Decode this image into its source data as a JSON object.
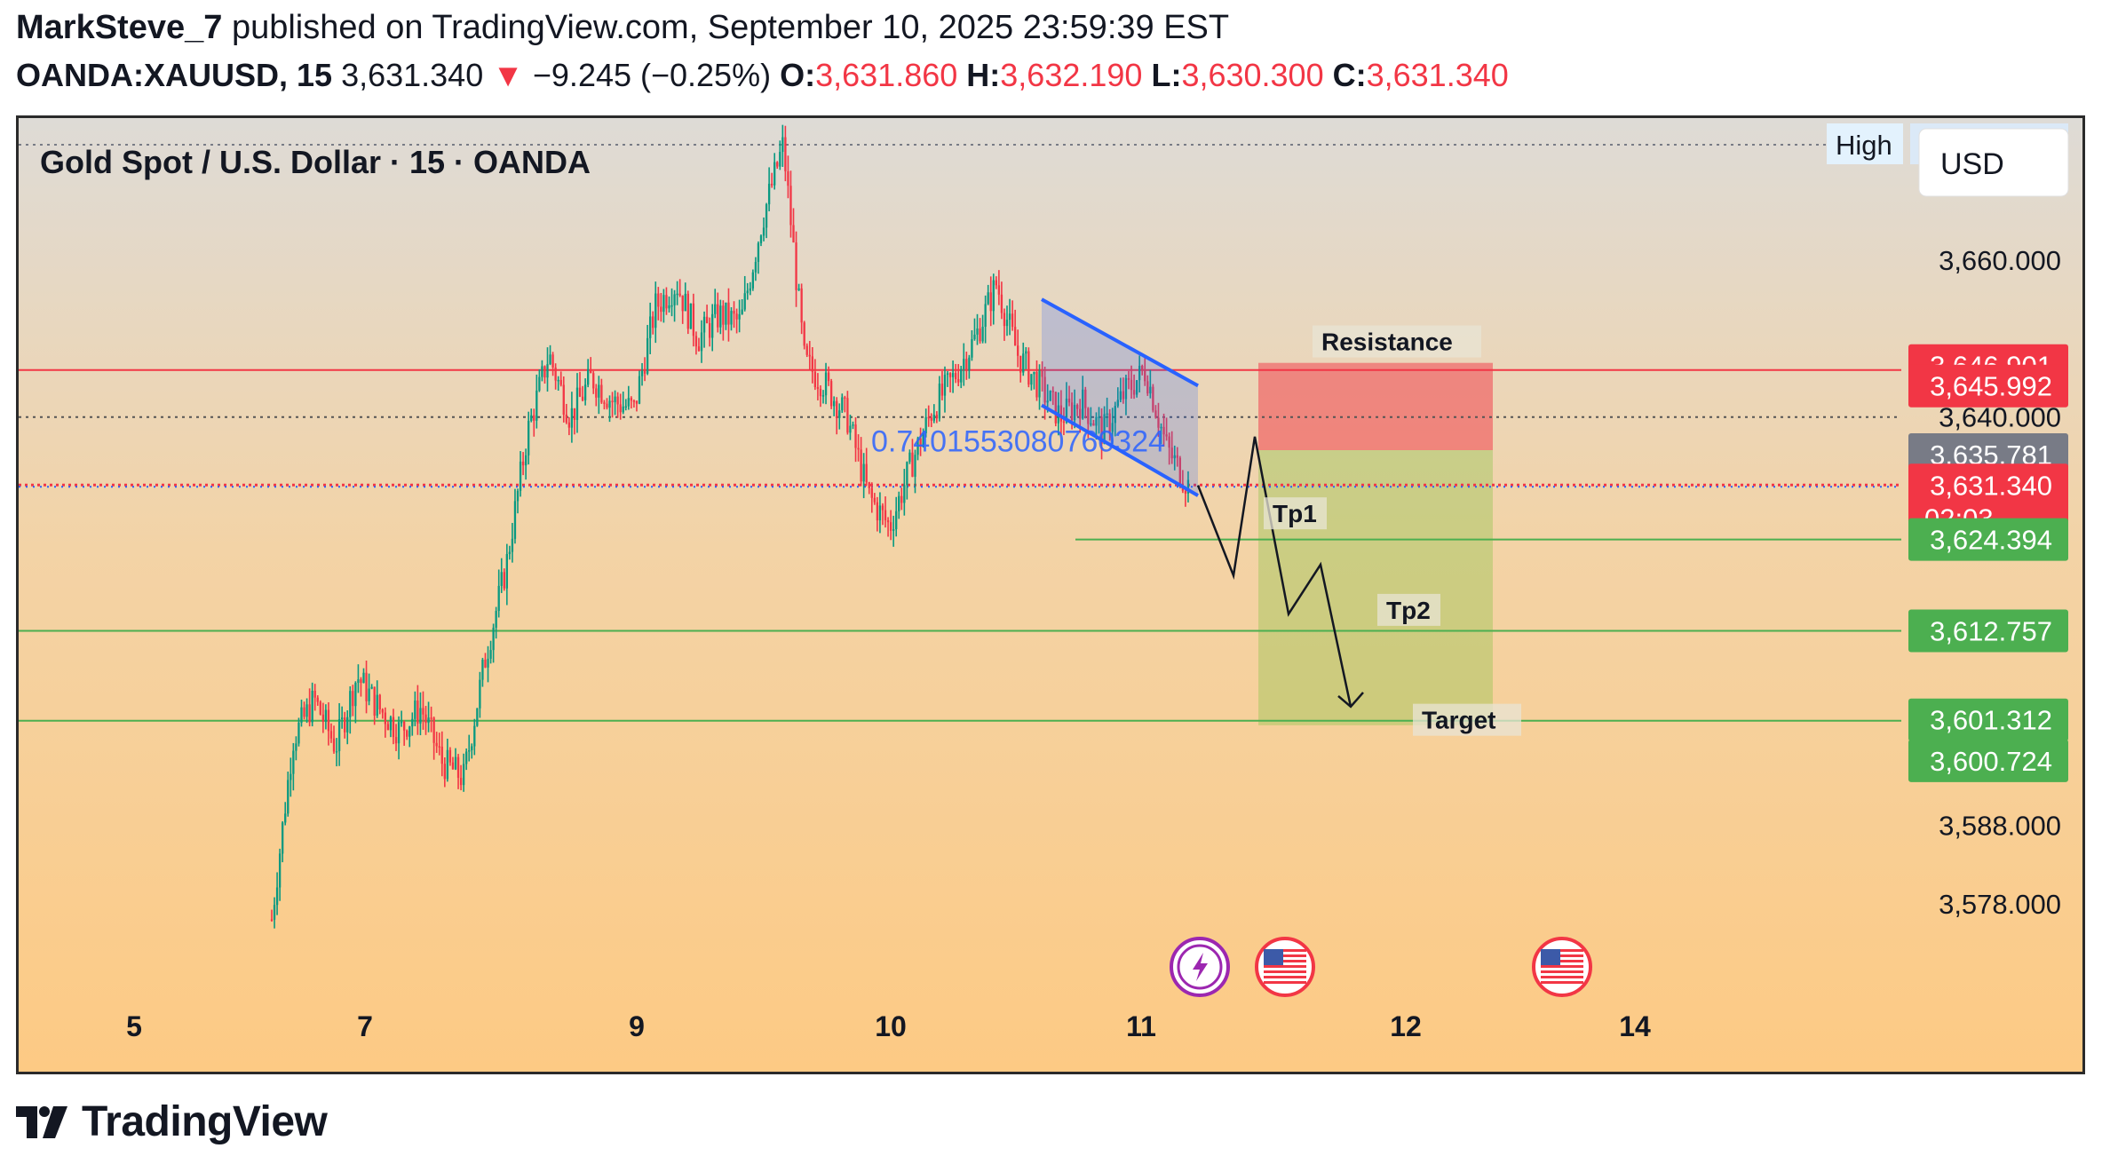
{
  "header": {
    "author": "MarkSteve_7",
    "published_text": " published on TradingView.com, September 10, 2025 23:59:39 EST",
    "symbol": "OANDA:XAUUSD, 15",
    "last_price": "3,631.340",
    "change": "−9.245 (−0.25%)",
    "open_label": "O:",
    "open": "3,631.860",
    "high_label": "H:",
    "high": "3,632.190",
    "low_label": "L:",
    "low": "3,630.300",
    "close_label": "C:",
    "close": "3,631.340"
  },
  "chart_title": "Gold Spot / U.S. Dollar · 15 · OANDA",
  "currency_button": "USD",
  "brand": "TradingView",
  "colors": {
    "up": "#089981",
    "down": "#f23645",
    "resistance_line": "#f23645",
    "tp_line": "#4caf50",
    "channel": "#2962ff",
    "bg_top": "#dedbd6",
    "bg_bottom": "#fdca84"
  },
  "chart_data": {
    "type": "candlestick",
    "symbol": "XAUUSD",
    "timeframe": "15",
    "x_ticks": [
      "5",
      "7",
      "9",
      "10",
      "11",
      "12",
      "14"
    ],
    "y_ticks": [
      "3,660.000",
      "3,640.000",
      "3,588.000",
      "3,578.000"
    ],
    "high_marker": {
      "label": "High",
      "value": "3,674.695"
    },
    "price_tags": [
      {
        "value": "3,646.901",
        "kind": "resistance"
      },
      {
        "value": "3,645.992",
        "kind": "resistance"
      },
      {
        "value": "3,635.781",
        "kind": "gray"
      },
      {
        "value": "3,631.340",
        "kind": "last",
        "countdown": "02:03"
      },
      {
        "value": "3,624.394",
        "kind": "target"
      },
      {
        "value": "3,612.757",
        "kind": "target"
      },
      {
        "value": "3,601.312",
        "kind": "target"
      },
      {
        "value": "3,600.724",
        "kind": "target"
      }
    ],
    "annotations": {
      "resistance": "Resistance",
      "tp1": "Tp1",
      "tp2": "Tp2",
      "target": "Target",
      "channel_ratio": "0.7401553080760324"
    },
    "resistance_zone": [
      3635.781,
      3646.901
    ],
    "target_zone": [
      3600.724,
      3635.781
    ],
    "projected_path": [
      3631.3,
      3637.5,
      3619.8,
      3630.5,
      3614.9,
      3621.2,
      3603.1
    ],
    "session_price_path": [
      3576,
      3599,
      3604,
      3598,
      3607,
      3603,
      3600,
      3603,
      3596,
      3594,
      3609,
      3621,
      3638,
      3648,
      3640,
      3645,
      3642,
      3641,
      3654,
      3657,
      3650,
      3653,
      3652,
      3665,
      3674.7,
      3647,
      3644,
      3640,
      3630,
      3626,
      3634,
      3641,
      3645,
      3650,
      3657,
      3648,
      3644,
      3640,
      3642,
      3638,
      3643,
      3646,
      3636,
      3631.3
    ]
  },
  "events": [
    "lightning-event-icon",
    "us-flag-icon",
    "us-flag-icon"
  ]
}
